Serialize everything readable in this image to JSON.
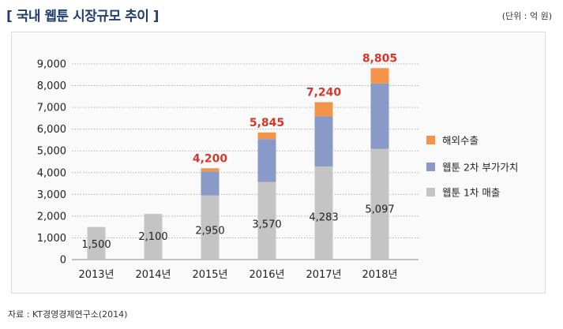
{
  "header": {
    "title": "[ 국내 웹툰 시장규모 추이 ]",
    "unit": "(단위 : 억 원)"
  },
  "footer": {
    "source": "자료 : KT경영경제연구소(2014)"
  },
  "colors": {
    "overseas": "#f4944a",
    "secondary": "#8a9ac8",
    "primary": "#c4c4c4",
    "total_label": "#d9362b",
    "title": "#1f3f73"
  },
  "chart_data": {
    "type": "bar",
    "stacked": true,
    "title": "국내 웹툰 시장규모 추이",
    "xlabel": "",
    "ylabel": "",
    "ylim": [
      0,
      9000
    ],
    "yticks": [
      0,
      1000,
      2000,
      3000,
      4000,
      5000,
      6000,
      7000,
      8000,
      9000
    ],
    "ytick_labels": [
      "0",
      "1,000",
      "2,000",
      "3,000",
      "4,000",
      "5,000",
      "6,000",
      "7,000",
      "8,000",
      "9,000"
    ],
    "categories": [
      "2013년",
      "2014년",
      "2015년",
      "2016년",
      "2017년",
      "2018년"
    ],
    "series": [
      {
        "name": "웹툰 1차 매출",
        "key": "primary",
        "values": [
          1500,
          2100,
          2950,
          3570,
          4283,
          5097
        ],
        "labels": [
          "1,500",
          "2,100",
          "2,950",
          "3,570",
          "4,283",
          "5,097"
        ]
      },
      {
        "name": "웹툰 2차 부가가치",
        "key": "secondary",
        "values": [
          0,
          0,
          1100,
          1975,
          2307,
          3008
        ]
      },
      {
        "name": "해외수출",
        "key": "overseas",
        "values": [
          0,
          0,
          150,
          300,
          650,
          700
        ]
      }
    ],
    "totals": [
      "",
      "",
      "4,200",
      "5,845",
      "7,240",
      "8,805"
    ],
    "legend_order": [
      "해외수출",
      "웹툰 2차 부가가치",
      "웹툰 1차 매출"
    ],
    "legend_position": "right",
    "grid": true
  }
}
